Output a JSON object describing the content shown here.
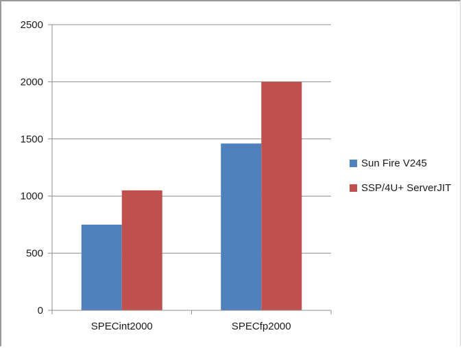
{
  "chart_data": {
    "type": "bar",
    "categories": [
      "SPECint2000",
      "SPECfp2000"
    ],
    "series": [
      {
        "name": "Sun Fire V245",
        "values": [
          750,
          1460
        ],
        "color": "#4f81bd"
      },
      {
        "name": "SSP/4U+ ServerJIT",
        "values": [
          1050,
          2000
        ],
        "color": "#c0504d"
      }
    ],
    "yticks": [
      "0",
      "500",
      "1000",
      "1500",
      "2000",
      "2500"
    ],
    "ylim": [
      0,
      2500
    ],
    "grid": true,
    "legend_position": "right",
    "gridline_color": "#8c8c8c"
  }
}
